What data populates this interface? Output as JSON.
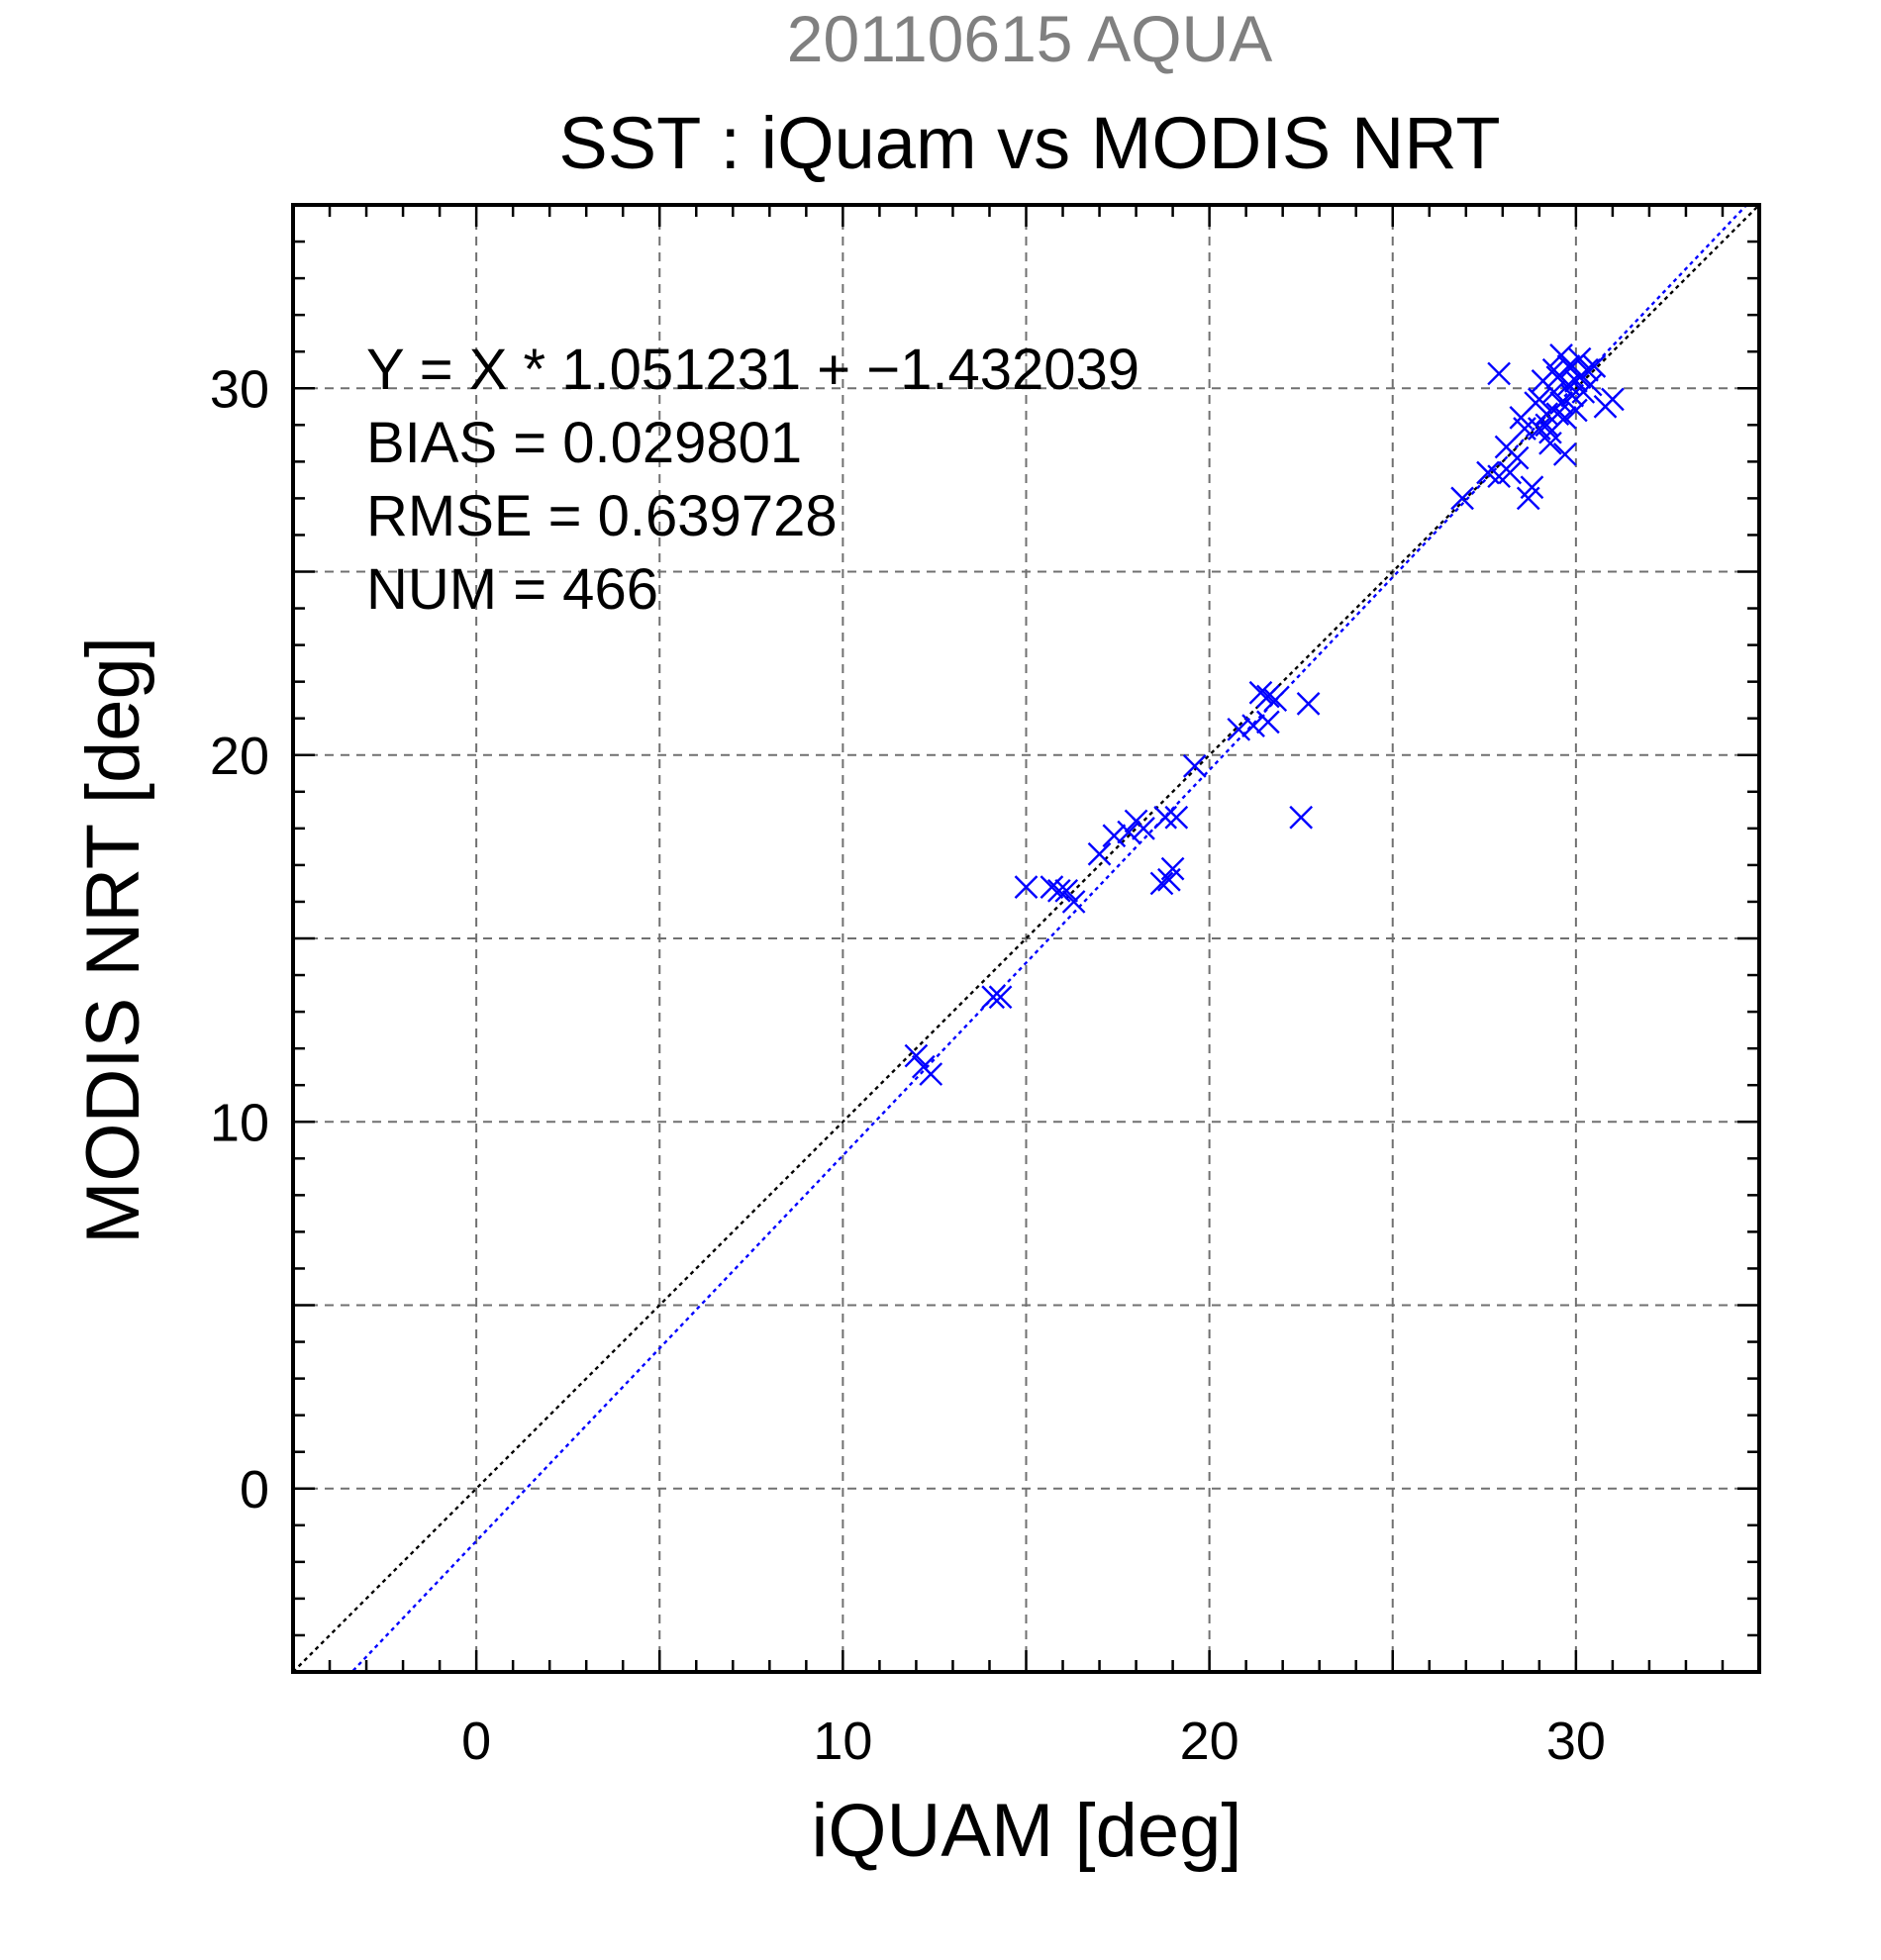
{
  "header": {
    "date_title": "20110615 AQUA",
    "main_title": "SST : iQuam vs MODIS NRT"
  },
  "stats": {
    "regression": "Y = X * 1.051231 + −1.432039",
    "bias": "BIAS = 0.029801",
    "rmse": "RMSE = 0.639728",
    "num": "NUM = 466"
  },
  "colors": {
    "points": "#0000ff",
    "fit_line": "#0000ff",
    "identity_line": "#000000",
    "grid": "#707070"
  },
  "chart_data": {
    "type": "scatter",
    "title": "SST : iQuam vs MODIS NRT",
    "subtitle": "20110615 AQUA",
    "xlabel": "iQUAM [deg]",
    "ylabel": "MODIS NRT [deg]",
    "xlim": [
      -5,
      35
    ],
    "ylim": [
      -5,
      35
    ],
    "xticks": [
      0,
      10,
      20,
      30
    ],
    "yticks": [
      0,
      10,
      20,
      30
    ],
    "grid": true,
    "grid_step": 5,
    "marker": "x",
    "reference_lines": [
      {
        "kind": "identity",
        "slope": 1,
        "intercept": 0,
        "color": "#000000",
        "style": "dotted"
      },
      {
        "kind": "regression",
        "slope": 1.051231,
        "intercept": -1.432039,
        "color": "#0000ff",
        "style": "dotted"
      }
    ],
    "points": [
      [
        12.0,
        11.8
      ],
      [
        12.2,
        11.5
      ],
      [
        12.4,
        11.3
      ],
      [
        14.1,
        13.4
      ],
      [
        14.3,
        13.4
      ],
      [
        15.0,
        16.4
      ],
      [
        15.7,
        16.4
      ],
      [
        15.9,
        16.3
      ],
      [
        16.1,
        16.3
      ],
      [
        16.3,
        16.0
      ],
      [
        17.0,
        17.3
      ],
      [
        17.4,
        17.8
      ],
      [
        17.8,
        17.9
      ],
      [
        18.0,
        18.2
      ],
      [
        18.2,
        18.0
      ],
      [
        18.7,
        16.5
      ],
      [
        18.9,
        16.6
      ],
      [
        19.0,
        16.9
      ],
      [
        18.8,
        18.3
      ],
      [
        19.1,
        18.3
      ],
      [
        19.6,
        19.7
      ],
      [
        20.8,
        20.7
      ],
      [
        21.2,
        20.8
      ],
      [
        21.4,
        21.7
      ],
      [
        21.6,
        21.6
      ],
      [
        21.8,
        21.5
      ],
      [
        21.6,
        20.9
      ],
      [
        22.7,
        21.4
      ],
      [
        22.5,
        18.3
      ],
      [
        26.9,
        27.0
      ],
      [
        27.6,
        27.7
      ],
      [
        27.9,
        27.6
      ],
      [
        27.9,
        30.4
      ],
      [
        28.1,
        28.4
      ],
      [
        28.2,
        27.7
      ],
      [
        28.4,
        28.1
      ],
      [
        28.6,
        28.9
      ],
      [
        28.7,
        27.0
      ],
      [
        28.8,
        27.3
      ],
      [
        28.9,
        29.6
      ],
      [
        29.0,
        28.9
      ],
      [
        29.1,
        30.2
      ],
      [
        29.2,
        29.3
      ],
      [
        29.3,
        28.5
      ],
      [
        29.4,
        29.9
      ],
      [
        29.5,
        30.3
      ],
      [
        29.6,
        29.6
      ],
      [
        29.7,
        28.2
      ],
      [
        29.8,
        30.6
      ],
      [
        29.9,
        29.8
      ],
      [
        30.0,
        30.2
      ],
      [
        30.1,
        30.8
      ],
      [
        30.2,
        29.9
      ],
      [
        30.3,
        30.5
      ],
      [
        30.4,
        30.1
      ],
      [
        29.2,
        29.0
      ],
      [
        29.4,
        30.5
      ],
      [
        29.8,
        30.1
      ],
      [
        30.0,
        29.4
      ],
      [
        29.6,
        30.9
      ],
      [
        30.8,
        29.5
      ],
      [
        31.0,
        29.7
      ],
      [
        28.5,
        29.2
      ],
      [
        29.0,
        29.7
      ],
      [
        29.3,
        28.8
      ],
      [
        29.5,
        29.3
      ],
      [
        29.7,
        29.2
      ],
      [
        30.1,
        30.3
      ],
      [
        30.5,
        30.6
      ],
      [
        29.9,
        30.6
      ]
    ]
  }
}
